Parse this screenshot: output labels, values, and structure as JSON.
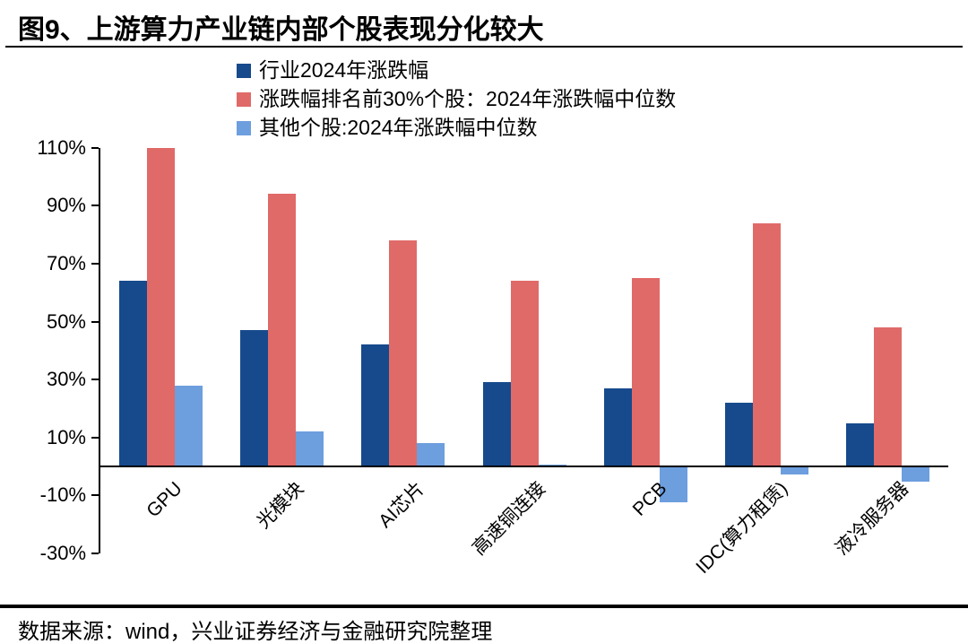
{
  "figure": {
    "title": "图9、上游算力产业链内部个股表现分化较大",
    "source": "数据来源：wind，兴业证券经济与金融研究院整理"
  },
  "colors": {
    "industry": "#164A8C",
    "top30": "#E06A68",
    "others": "#6D9EDE",
    "axis": "#000000"
  },
  "chart_data": {
    "type": "bar",
    "title": "图9、上游算力产业链内部个股表现分化较大",
    "categories": [
      "GPU",
      "光模块",
      "AI芯片",
      "高速铜连接",
      "PCB",
      "IDC(算力租赁)",
      "液冷服务器"
    ],
    "series": [
      {
        "name": "行业2024年涨跌幅",
        "color_key": "industry",
        "values": [
          64,
          47,
          42,
          29,
          27,
          22,
          15
        ]
      },
      {
        "name": "涨跌幅排名前30%个股：2024年涨跌幅中位数",
        "color_key": "top30",
        "values": [
          110,
          94,
          78,
          64,
          65,
          84,
          48
        ]
      },
      {
        "name": "其他个股:2024年涨跌幅中位数",
        "color_key": "others",
        "values": [
          28,
          12,
          8,
          0.5,
          -12,
          -2.5,
          -5
        ]
      }
    ],
    "xlabel": "",
    "ylabel": "",
    "ylim": [
      -30,
      110
    ],
    "yticks": [
      110,
      90,
      70,
      50,
      30,
      10,
      -10,
      -30
    ],
    "ytick_suffix": "%",
    "legend_position": "top-center",
    "grid": false,
    "x_label_rotation_deg": 45
  }
}
